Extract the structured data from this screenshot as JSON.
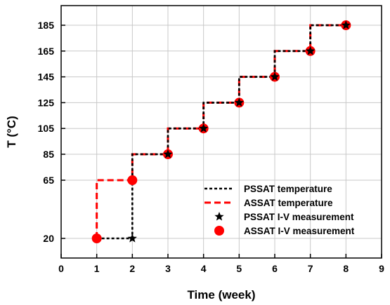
{
  "chart_data": {
    "type": "line",
    "xlabel": "Time (week)",
    "ylabel": "T (°C)",
    "xlim": [
      0,
      9
    ],
    "ylim": [
      0,
      200
    ],
    "grid": true,
    "legend_placement": "bottom-right",
    "x_ticks": [
      0,
      1,
      2,
      3,
      4,
      5,
      6,
      7,
      8,
      9
    ],
    "y_ticks": [
      20,
      65,
      85,
      105,
      125,
      145,
      165,
      185
    ],
    "y_scale": {
      "note": "non-uniform: gap between 20 and 65 is compressed",
      "ticks": [
        20,
        65,
        85,
        105,
        125,
        145,
        165,
        185
      ]
    },
    "series": [
      {
        "name": "PSSAT temperature",
        "kind": "step-line",
        "color": "#000000",
        "style": "dotted",
        "points": [
          [
            1,
            20
          ],
          [
            2,
            20
          ],
          [
            2,
            85
          ],
          [
            3,
            85
          ],
          [
            3,
            105
          ],
          [
            4,
            105
          ],
          [
            4,
            125
          ],
          [
            5,
            125
          ],
          [
            5,
            145
          ],
          [
            6,
            145
          ],
          [
            6,
            165
          ],
          [
            7,
            165
          ],
          [
            7,
            185
          ],
          [
            8,
            185
          ]
        ]
      },
      {
        "name": "ASSAT temperature",
        "kind": "step-line",
        "color": "#ff0000",
        "style": "dashed",
        "points": [
          [
            1,
            20
          ],
          [
            1,
            65
          ],
          [
            2,
            65
          ],
          [
            2,
            85
          ],
          [
            3,
            85
          ],
          [
            3,
            105
          ],
          [
            4,
            105
          ],
          [
            4,
            125
          ],
          [
            5,
            125
          ],
          [
            5,
            145
          ],
          [
            6,
            145
          ],
          [
            6,
            165
          ],
          [
            7,
            165
          ],
          [
            7,
            185
          ],
          [
            8,
            185
          ]
        ]
      },
      {
        "name": "PSSAT I-V measurement",
        "kind": "scatter",
        "marker": "star",
        "color": "#000000",
        "points": [
          [
            2,
            20
          ],
          [
            3,
            85
          ],
          [
            4,
            105
          ],
          [
            5,
            125
          ],
          [
            6,
            145
          ],
          [
            7,
            165
          ],
          [
            8,
            185
          ]
        ]
      },
      {
        "name": "ASSAT I-V measurement",
        "kind": "scatter",
        "marker": "circle",
        "color": "#ff0000",
        "points": [
          [
            1,
            20
          ],
          [
            2,
            65
          ],
          [
            3,
            85
          ],
          [
            4,
            105
          ],
          [
            5,
            125
          ],
          [
            6,
            145
          ],
          [
            7,
            165
          ],
          [
            8,
            185
          ]
        ]
      }
    ]
  }
}
